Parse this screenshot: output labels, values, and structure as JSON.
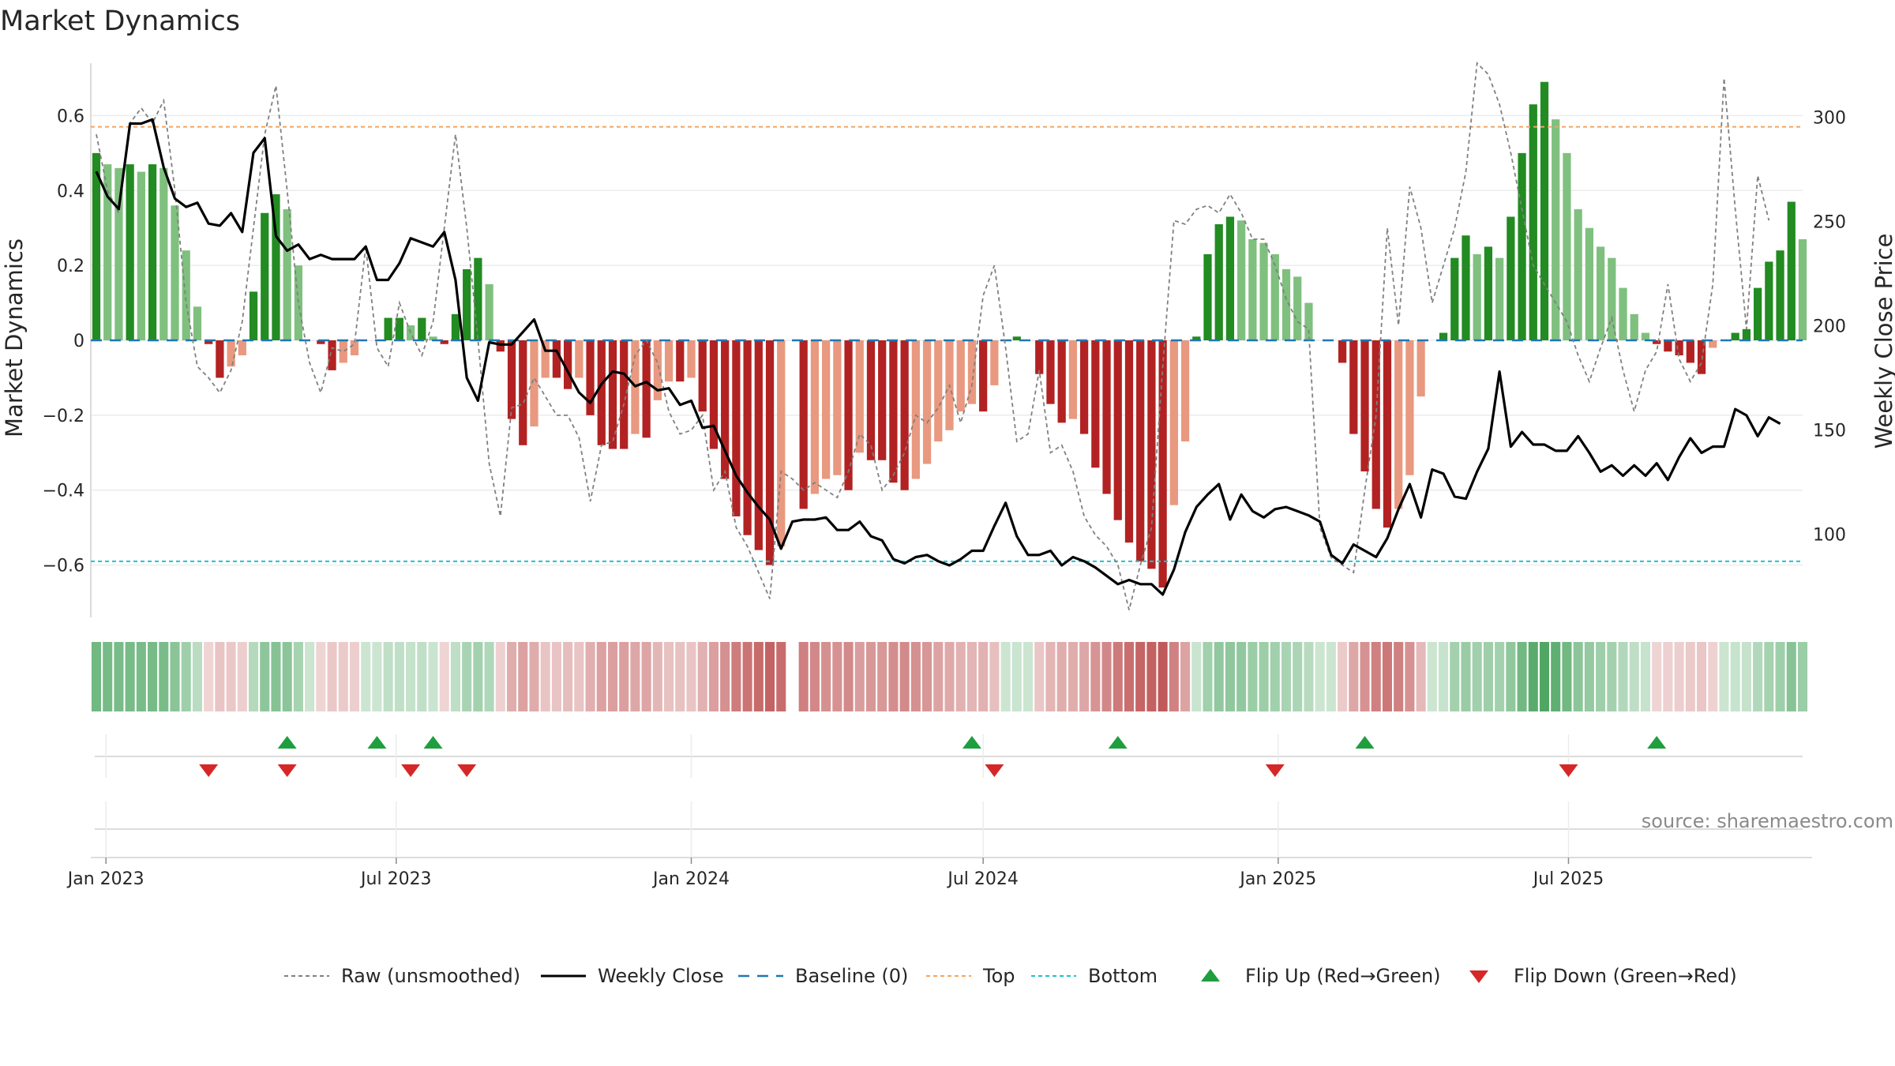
{
  "title": "Market Dynamics",
  "source": "source: sharemaestro.com",
  "colors": {
    "strong_green": "#228B22",
    "light_green": "#7fc07f",
    "strong_red": "#b22222",
    "light_red": "#e8997f",
    "raw": "#808080",
    "close": "#000000",
    "baseline": "#1f77b4",
    "top": "#f4a460",
    "bottom": "#20c0d0",
    "flip_up": "#1f9e3f",
    "flip_down": "#d62728"
  },
  "chart_data": {
    "type": "bar",
    "title": "Market Dynamics",
    "ylabel": "Market Dynamics",
    "y2label": "Weekly Close Price",
    "ylim": [
      -0.74,
      0.74
    ],
    "y2lim": [
      60,
      326
    ],
    "yticks": [
      0.6,
      0.4,
      0.2,
      0,
      -0.2,
      -0.4,
      -0.6
    ],
    "yticklabels": [
      "0.6",
      "0.4",
      "0.2",
      "0",
      "−0.2",
      "−0.4",
      "−0.6"
    ],
    "y2ticks": [
      300,
      250,
      200,
      150,
      100
    ],
    "y2ticklabels": [
      "300",
      "250",
      "200",
      "150",
      "100"
    ],
    "xticks": [
      "2023-01-01",
      "2023-07-01",
      "2024-01-01",
      "2024-07-01",
      "2025-01-01",
      "2025-07-01"
    ],
    "xticklabels": [
      "Jan 2023",
      "Jul 2023",
      "Jan 2024",
      "Jul 2024",
      "Jan 2025",
      "Jul 2025"
    ],
    "start_date": "2022-12-26",
    "top_line": 0.57,
    "bottom_line": -0.59,
    "baseline": 0,
    "dynamics": [
      0.5,
      0.47,
      0.46,
      0.47,
      0.45,
      0.47,
      0.46,
      0.36,
      0.24,
      0.09,
      -0.01,
      -0.1,
      -0.07,
      -0.04,
      0.13,
      0.34,
      0.39,
      0.35,
      0.2,
      0,
      -0.01,
      -0.08,
      -0.06,
      -0.04,
      0,
      0,
      0.06,
      0.06,
      0.04,
      0.06,
      0.01,
      -0.01,
      0.07,
      0.19,
      0.22,
      0.15,
      -0.03,
      -0.21,
      -0.28,
      -0.23,
      -0.1,
      -0.1,
      -0.13,
      -0.1,
      -0.2,
      -0.28,
      -0.29,
      -0.29,
      -0.25,
      -0.26,
      -0.16,
      -0.11,
      -0.11,
      -0.1,
      -0.19,
      -0.29,
      -0.37,
      -0.47,
      -0.52,
      -0.56,
      -0.6,
      -0.55,
      0,
      -0.45,
      -0.41,
      -0.37,
      -0.36,
      -0.4,
      -0.3,
      -0.32,
      -0.32,
      -0.38,
      -0.4,
      -0.37,
      -0.33,
      -0.27,
      -0.24,
      -0.19,
      -0.17,
      -0.19,
      -0.12,
      0,
      0.01,
      0,
      -0.09,
      -0.17,
      -0.22,
      -0.21,
      -0.25,
      -0.34,
      -0.41,
      -0.48,
      -0.54,
      -0.59,
      -0.61,
      -0.66,
      -0.44,
      -0.27,
      0.01,
      0.23,
      0.31,
      0.33,
      0.32,
      0.27,
      0.26,
      0.23,
      0.19,
      0.17,
      0.1,
      0,
      0,
      -0.06,
      -0.25,
      -0.35,
      -0.45,
      -0.5,
      -0.45,
      -0.36,
      -0.15,
      0,
      0.02,
      0.22,
      0.28,
      0.23,
      0.25,
      0.22,
      0.33,
      0.5,
      0.63,
      0.69,
      0.59,
      0.5,
      0.35,
      0.3,
      0.25,
      0.22,
      0.14,
      0.07,
      0.02,
      -0.01,
      -0.03,
      -0.04,
      -0.06,
      -0.09,
      -0.02,
      0,
      0.02,
      0.03,
      0.14,
      0.21,
      0.24,
      0.37,
      0.27
    ],
    "raw": [
      0.55,
      0.4,
      0.34,
      0.58,
      0.62,
      0.58,
      0.64,
      0.4,
      0.1,
      -0.07,
      -0.1,
      -0.14,
      -0.08,
      0.05,
      0.3,
      0.55,
      0.68,
      0.4,
      0.1,
      -0.06,
      -0.14,
      -0.02,
      -0.03,
      -0.01,
      0.25,
      -0.02,
      -0.07,
      0.1,
      0.02,
      -0.04,
      0.05,
      0.3,
      0.55,
      0.3,
      0.0,
      -0.33,
      -0.47,
      -0.18,
      -0.17,
      -0.1,
      -0.15,
      -0.2,
      -0.2,
      -0.26,
      -0.43,
      -0.28,
      -0.27,
      -0.17,
      -0.04,
      0,
      -0.06,
      -0.19,
      -0.25,
      -0.24,
      -0.2,
      -0.4,
      -0.35,
      -0.5,
      -0.55,
      -0.62,
      -0.69,
      -0.35,
      -0.37,
      -0.4,
      -0.38,
      -0.4,
      -0.42,
      -0.35,
      -0.25,
      -0.28,
      -0.4,
      -0.36,
      -0.3,
      -0.2,
      -0.22,
      -0.18,
      -0.12,
      -0.22,
      -0.12,
      0.12,
      0.2,
      -0.02,
      -0.27,
      -0.25,
      -0.08,
      -0.3,
      -0.28,
      -0.35,
      -0.47,
      -0.52,
      -0.55,
      -0.6,
      -0.72,
      -0.6,
      -0.5,
      -0.07,
      0.32,
      0.31,
      0.35,
      0.36,
      0.34,
      0.39,
      0.34,
      0.27,
      0.27,
      0.2,
      0.11,
      0.05,
      0.03,
      -0.5,
      -0.58,
      -0.6,
      -0.62,
      -0.4,
      -0.2,
      0.3,
      0.04,
      0.41,
      0.3,
      0.1,
      0.2,
      0.3,
      0.45,
      0.74,
      0.71,
      0.63,
      0.5,
      0.35,
      0.2,
      0.15,
      0.1,
      0.05,
      -0.04,
      -0.11,
      -0.02,
      0.06,
      -0.08,
      -0.19,
      -0.08,
      -0.03,
      0.15,
      -0.05,
      -0.11,
      -0.06,
      0.15,
      0.7,
      0.35,
      0.03,
      0.44,
      0.32
    ],
    "close": [
      274,
      262,
      256,
      297,
      297,
      299,
      276,
      261,
      257,
      259,
      249,
      248,
      254,
      245,
      283,
      290,
      243,
      236,
      239,
      232,
      234,
      232,
      232,
      232,
      238,
      222,
      222,
      230,
      242,
      240,
      238,
      245,
      222,
      175,
      164,
      192,
      191,
      191,
      197,
      203,
      188,
      188,
      178,
      168,
      163,
      172,
      178,
      177,
      171,
      173,
      169,
      170,
      162,
      164,
      151,
      152,
      140,
      128,
      120,
      113,
      107,
      93,
      106,
      107,
      107,
      108,
      102,
      102,
      106,
      99,
      97,
      88,
      86,
      89,
      90,
      87,
      85,
      88,
      92,
      92,
      104,
      115,
      99,
      90,
      90,
      92,
      85,
      89,
      87,
      84,
      80,
      76,
      78,
      76,
      76,
      71,
      83,
      101,
      113,
      119,
      124,
      107,
      119,
      111,
      108,
      112,
      113,
      111,
      109,
      106,
      90,
      86,
      95,
      92,
      89,
      98,
      112,
      124,
      108,
      131,
      129,
      118,
      117,
      130,
      141,
      178,
      142,
      149,
      143,
      143,
      140,
      140,
      147,
      139,
      130,
      133,
      128,
      133,
      128,
      134,
      126,
      137,
      146,
      139,
      142,
      142,
      160,
      157,
      147,
      156,
      153
    ],
    "flip_up_x": [
      "2023-04-24",
      "2023-06-19",
      "2023-07-24",
      "2024-06-24",
      "2024-09-23",
      "2025-02-24",
      "2025-08-25"
    ],
    "flip_down_x": [
      "2023-03-06",
      "2023-04-24",
      "2023-07-10",
      "2023-08-14",
      "2024-07-08",
      "2024-12-30",
      "2025-07-01"
    ],
    "legend": [
      {
        "label": "Raw (unsmoothed)",
        "style": "dashed-gray"
      },
      {
        "label": "Weekly Close",
        "style": "solid-black"
      },
      {
        "label": "Baseline (0)",
        "style": "dashed-blue"
      },
      {
        "label": "Top",
        "style": "dotted-orange"
      },
      {
        "label": "Bottom",
        "style": "dotted-cyan"
      },
      {
        "label": "Flip Up (Red→Green)",
        "style": "triangle-up-green"
      },
      {
        "label": "Flip Down (Green→Red)",
        "style": "triangle-down-red"
      }
    ]
  }
}
